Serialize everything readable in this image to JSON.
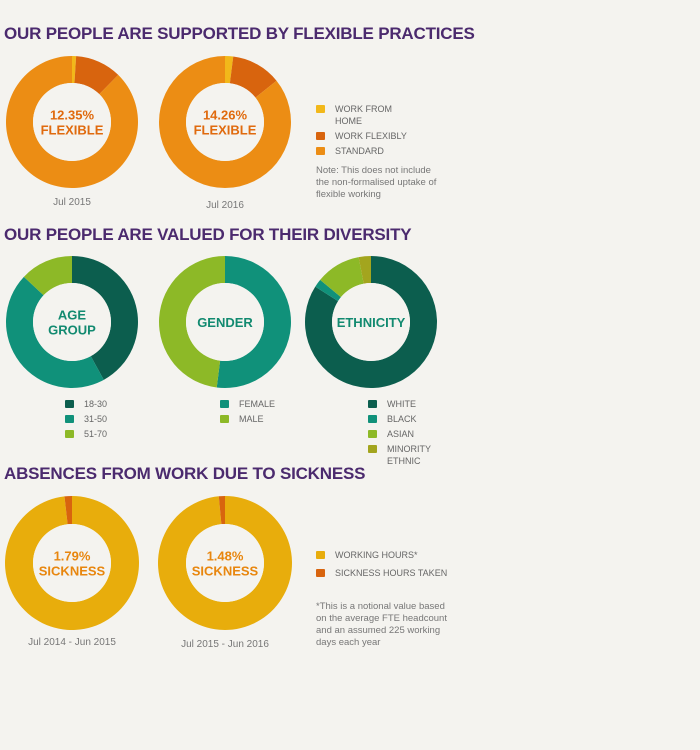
{
  "sections": [
    {
      "title": "OUR PEOPLE ARE SUPPORTED BY FLEXIBLE PRACTICES"
    },
    {
      "title": "OUR PEOPLE ARE VALUED FOR THEIR DIVERSITY"
    },
    {
      "title": "ABSENCES FROM WORK DUE TO SICKNESS"
    }
  ],
  "chart_data": [
    {
      "type": "pie",
      "subtype": "donut",
      "group": "flexible",
      "center_lines": [
        "12.35%",
        "FLEXIBLE"
      ],
      "center_color": "#e06a0e",
      "caption": "Jul 2015",
      "categories": [
        "Work from home",
        "Work flexibly",
        "Standard"
      ],
      "values": [
        1.0,
        11.35,
        87.65
      ],
      "colors": [
        "#f2b81a",
        "#d8640e",
        "#ec8d14"
      ]
    },
    {
      "type": "pie",
      "subtype": "donut",
      "group": "flexible",
      "center_lines": [
        "14.26%",
        "FLEXIBLE"
      ],
      "center_color": "#e06a0e",
      "caption": "Jul 2016",
      "categories": [
        "Work from home",
        "Work flexibly",
        "Standard"
      ],
      "values": [
        2.0,
        12.26,
        85.74
      ],
      "colors": [
        "#f2b81a",
        "#d8640e",
        "#ec8d14"
      ]
    },
    {
      "type": "pie",
      "subtype": "donut",
      "group": "diversity",
      "center_lines": [
        "AGE",
        "GROUP"
      ],
      "center_color": "#128a70",
      "caption": "",
      "categories": [
        "18-30",
        "31-50",
        "51-70"
      ],
      "values": [
        42,
        45,
        13
      ],
      "colors": [
        "#0c5e4e",
        "#10917a",
        "#8db927"
      ]
    },
    {
      "type": "pie",
      "subtype": "donut",
      "group": "diversity",
      "center_lines": [
        "GENDER"
      ],
      "center_color": "#128a70",
      "caption": "",
      "categories": [
        "Female",
        "Male"
      ],
      "values": [
        52,
        48
      ],
      "colors": [
        "#10917a",
        "#8db927"
      ]
    },
    {
      "type": "pie",
      "subtype": "donut",
      "group": "diversity",
      "center_lines": [
        "ETHNICITY"
      ],
      "center_color": "#128a70",
      "caption": "",
      "categories": [
        "White",
        "Black",
        "Asian",
        "Minority Ethnic"
      ],
      "values": [
        84,
        2,
        11,
        3
      ],
      "colors": [
        "#0c5e4e",
        "#10917a",
        "#8db927",
        "#a3a51e"
      ]
    },
    {
      "type": "pie",
      "subtype": "donut",
      "group": "sickness",
      "center_lines": [
        "1.79%",
        "SICKNESS"
      ],
      "center_color": "#e8860e",
      "caption": "Jul 2014 - Jun 2015",
      "categories": [
        "Working hours*",
        "Sickness hours taken"
      ],
      "values": [
        98.21,
        1.79
      ],
      "colors": [
        "#e8ad0c",
        "#d8640e"
      ]
    },
    {
      "type": "pie",
      "subtype": "donut",
      "group": "sickness",
      "center_lines": [
        "1.48%",
        "SICKNESS"
      ],
      "center_color": "#e8860e",
      "caption": "Jul 2015 - Jun 2016",
      "categories": [
        "Working hours*",
        "Sickness hours taken"
      ],
      "values": [
        98.52,
        1.48
      ],
      "colors": [
        "#e8ad0c",
        "#d8640e"
      ]
    }
  ],
  "legends": {
    "flexible": [
      {
        "label": "WORK FROM HOME",
        "color": "#f2b81a"
      },
      {
        "label": "WORK FLEXIBLY",
        "color": "#d8640e"
      },
      {
        "label": "STANDARD",
        "color": "#ec8d14"
      }
    ],
    "age": [
      {
        "label": "18-30",
        "color": "#0c5e4e"
      },
      {
        "label": "31-50",
        "color": "#10917a"
      },
      {
        "label": "51-70",
        "color": "#8db927"
      }
    ],
    "gender": [
      {
        "label": "FEMALE",
        "color": "#10917a"
      },
      {
        "label": "MALE",
        "color": "#8db927"
      }
    ],
    "ethnicity": [
      {
        "label": "WHITE",
        "color": "#0c5e4e"
      },
      {
        "label": "BLACK",
        "color": "#10917a"
      },
      {
        "label": "ASIAN",
        "color": "#8db927"
      },
      {
        "label": "MINORITY ETHNIC",
        "color": "#a3a51e"
      }
    ],
    "sickness": [
      {
        "label": "WORKING HOURS*",
        "color": "#e8ad0c"
      },
      {
        "label": "SICKNESS HOURS TAKEN",
        "color": "#d8640e"
      }
    ]
  },
  "notes": {
    "flexible": "Note: This does not include the non-formalised uptake of flexible working",
    "sickness": "*This is a notional value based on the average FTE headcount and an assumed 225 working days each year"
  }
}
